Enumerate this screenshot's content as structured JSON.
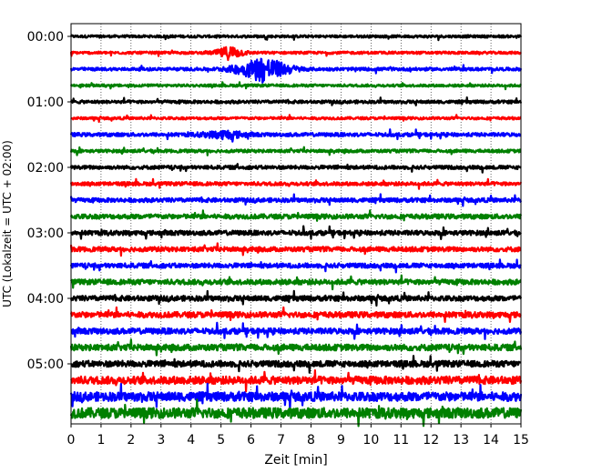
{
  "chart_data": {
    "type": "line",
    "chart_kind": "helicorder",
    "xlabel": "Zeit  [min]",
    "ylabel": "UTC (Lokalzeit = UTC + 02:00)",
    "xlim": [
      0,
      15
    ],
    "x_ticks": [
      "0",
      "1",
      "2",
      "3",
      "4",
      "5",
      "6",
      "7",
      "8",
      "9",
      "10",
      "11",
      "12",
      "13",
      "14",
      "15"
    ],
    "y_ticks": [
      "00:00",
      "01:00",
      "02:00",
      "03:00",
      "04:00",
      "05:00"
    ],
    "grid": "vertical dotted lines at each minute",
    "trace_interval_minutes": 15,
    "trace_count": 24,
    "trace_colors": [
      "#000000",
      "#ff0000",
      "#0000ff",
      "#008000"
    ],
    "events": [
      {
        "trace": 1,
        "start_min": 4.4,
        "peak_min": 5.3,
        "end_min": 6.2,
        "amplitude": 0.55
      },
      {
        "trace": 2,
        "start_min": 4.6,
        "peak_min": 6.4,
        "end_min": 8.2,
        "amplitude": 1.0
      },
      {
        "trace": 6,
        "start_min": 3.5,
        "peak_min": 5.2,
        "end_min": 6.5,
        "amplitude": 0.3
      }
    ],
    "noise_level_by_trace": [
      0.1,
      0.1,
      0.12,
      0.1,
      0.12,
      0.1,
      0.14,
      0.12,
      0.14,
      0.14,
      0.16,
      0.18,
      0.18,
      0.18,
      0.18,
      0.2,
      0.2,
      0.22,
      0.22,
      0.24,
      0.24,
      0.3,
      0.35,
      0.4
    ]
  }
}
